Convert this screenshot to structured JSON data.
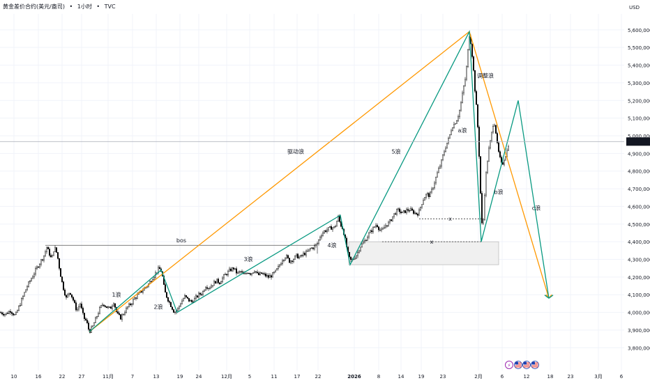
{
  "header": {
    "symbol_name": "黄金差价合约(美元/盎司)",
    "interval": "1小时",
    "source": "TVC",
    "separator": "•"
  },
  "chart_data": {
    "type": "candlestick",
    "price_unit": "USD",
    "ylim": [
      3750000,
      5690000
    ],
    "y_ticks": [
      "5,600,000",
      "5,500,000",
      "5,400,000",
      "5,300,000",
      "5,200,000",
      "5,100,000",
      "5,000,000",
      "4,900,000",
      "4,800,000",
      "4,700,000",
      "4,600,000",
      "4,500,000",
      "4,400,000",
      "4,300,000",
      "4,200,000",
      "4,100,000",
      "4,000,000",
      "3,900,000",
      "3,800,000"
    ],
    "x_ticks": [
      "10",
      "16",
      "22",
      "27",
      "11月",
      "7",
      "13",
      "19",
      "24",
      "12月",
      "5",
      "11",
      "17",
      "22",
      "2026",
      "8",
      "14",
      "19",
      "23",
      "2月",
      "6",
      "12",
      "18",
      "23",
      "3月",
      "6"
    ],
    "last_price_label": "4,967.270",
    "last_price": 4967270,
    "price_path": [
      [
        0,
        4000000
      ],
      [
        8,
        3990000
      ],
      [
        15,
        4010000
      ],
      [
        22,
        3980000
      ],
      [
        30,
        4060000
      ],
      [
        38,
        4140000
      ],
      [
        46,
        4200000
      ],
      [
        54,
        4260000
      ],
      [
        60,
        4300000
      ],
      [
        64,
        4330000
      ],
      [
        67,
        4370000
      ],
      [
        70,
        4340000
      ],
      [
        74,
        4300000
      ],
      [
        78,
        4370000
      ],
      [
        82,
        4330000
      ],
      [
        86,
        4230000
      ],
      [
        90,
        4150000
      ],
      [
        95,
        4080000
      ],
      [
        100,
        4120000
      ],
      [
        105,
        4070000
      ],
      [
        110,
        4010000
      ],
      [
        115,
        4050000
      ],
      [
        120,
        3970000
      ],
      [
        124,
        3950000
      ],
      [
        128,
        3890000
      ],
      [
        133,
        3920000
      ],
      [
        138,
        3970000
      ],
      [
        143,
        4020000
      ],
      [
        148,
        4050000
      ],
      [
        153,
        4030000
      ],
      [
        158,
        4020000
      ],
      [
        163,
        4060000
      ],
      [
        168,
        3990000
      ],
      [
        173,
        3970000
      ],
      [
        178,
        4000000
      ],
      [
        183,
        4030000
      ],
      [
        188,
        4050000
      ],
      [
        193,
        4080000
      ],
      [
        198,
        4100000
      ],
      [
        203,
        4120000
      ],
      [
        208,
        4140000
      ],
      [
        213,
        4160000
      ],
      [
        218,
        4190000
      ],
      [
        223,
        4220000
      ],
      [
        228,
        4250000
      ],
      [
        232,
        4230000
      ],
      [
        236,
        4120000
      ],
      [
        240,
        4080000
      ],
      [
        245,
        4040000
      ],
      [
        250,
        4000000
      ],
      [
        255,
        4020000
      ],
      [
        260,
        4060000
      ],
      [
        265,
        4090000
      ],
      [
        270,
        4070000
      ],
      [
        275,
        4060000
      ],
      [
        280,
        4080000
      ],
      [
        285,
        4100000
      ],
      [
        290,
        4110000
      ],
      [
        295,
        4150000
      ],
      [
        300,
        4140000
      ],
      [
        305,
        4160000
      ],
      [
        310,
        4180000
      ],
      [
        315,
        4170000
      ],
      [
        320,
        4200000
      ],
      [
        325,
        4220000
      ],
      [
        330,
        4240000
      ],
      [
        335,
        4250000
      ],
      [
        340,
        4220000
      ],
      [
        345,
        4230000
      ],
      [
        350,
        4210000
      ],
      [
        355,
        4230000
      ],
      [
        360,
        4220000
      ],
      [
        365,
        4240000
      ],
      [
        370,
        4210000
      ],
      [
        375,
        4220000
      ],
      [
        380,
        4210000
      ],
      [
        385,
        4200000
      ],
      [
        390,
        4210000
      ],
      [
        395,
        4230000
      ],
      [
        400,
        4260000
      ],
      [
        405,
        4300000
      ],
      [
        410,
        4320000
      ],
      [
        415,
        4290000
      ],
      [
        420,
        4300000
      ],
      [
        425,
        4320000
      ],
      [
        430,
        4310000
      ],
      [
        435,
        4330000
      ],
      [
        440,
        4340000
      ],
      [
        445,
        4360000
      ],
      [
        450,
        4370000
      ],
      [
        455,
        4390000
      ],
      [
        460,
        4440000
      ],
      [
        465,
        4460000
      ],
      [
        470,
        4470000
      ],
      [
        475,
        4480000
      ],
      [
        480,
        4480000
      ],
      [
        485,
        4540000
      ],
      [
        488,
        4500000
      ],
      [
        492,
        4470000
      ],
      [
        496,
        4390000
      ],
      [
        500,
        4310000
      ],
      [
        504,
        4290000
      ],
      [
        508,
        4310000
      ],
      [
        512,
        4330000
      ],
      [
        516,
        4370000
      ],
      [
        520,
        4390000
      ],
      [
        524,
        4410000
      ],
      [
        528,
        4440000
      ],
      [
        532,
        4460000
      ],
      [
        536,
        4480000
      ],
      [
        540,
        4500000
      ],
      [
        544,
        4470000
      ],
      [
        548,
        4460000
      ],
      [
        552,
        4490000
      ],
      [
        556,
        4500000
      ],
      [
        560,
        4520000
      ],
      [
        564,
        4550000
      ],
      [
        568,
        4570000
      ],
      [
        572,
        4580000
      ],
      [
        576,
        4560000
      ],
      [
        580,
        4570000
      ],
      [
        584,
        4580000
      ],
      [
        588,
        4580000
      ],
      [
        592,
        4570000
      ],
      [
        596,
        4560000
      ],
      [
        600,
        4560000
      ],
      [
        604,
        4610000
      ],
      [
        608,
        4650000
      ],
      [
        612,
        4670000
      ],
      [
        616,
        4660000
      ],
      [
        620,
        4700000
      ],
      [
        624,
        4750000
      ],
      [
        628,
        4800000
      ],
      [
        632,
        4840000
      ],
      [
        636,
        4900000
      ],
      [
        640,
        4950000
      ],
      [
        644,
        4990000
      ],
      [
        648,
        5050000
      ],
      [
        652,
        5070000
      ],
      [
        656,
        5100000
      ],
      [
        660,
        5160000
      ],
      [
        664,
        5260000
      ],
      [
        668,
        5340000
      ],
      [
        671,
        5480000
      ],
      [
        673,
        5570000
      ],
      [
        675,
        5530000
      ],
      [
        678,
        5420000
      ],
      [
        681,
        5260000
      ],
      [
        684,
        5120000
      ],
      [
        686,
        4980000
      ],
      [
        688,
        4800000
      ],
      [
        690,
        4550000
      ],
      [
        692,
        4450000
      ],
      [
        694,
        4600000
      ],
      [
        696,
        4750000
      ],
      [
        698,
        4820000
      ],
      [
        700,
        4900000
      ],
      [
        702,
        4950000
      ],
      [
        704,
        4980000
      ],
      [
        706,
        5050000
      ],
      [
        708,
        5080000
      ],
      [
        710,
        5060000
      ],
      [
        712,
        4980000
      ],
      [
        714,
        4920000
      ],
      [
        716,
        4890000
      ],
      [
        718,
        4850000
      ],
      [
        720,
        4830000
      ],
      [
        722,
        4860000
      ],
      [
        724,
        4880000
      ],
      [
        726,
        4900000
      ],
      [
        728,
        4930000
      ],
      [
        730,
        4967270
      ]
    ],
    "lines": [
      {
        "color": "#ff9800",
        "points": [
          [
            128,
            3890000
          ],
          [
            673,
            5590000
          ],
          [
            787,
            4080000
          ]
        ]
      },
      {
        "color": "#ff9800",
        "points": [
          [
            787,
            4080000
          ],
          [
            783,
            4100000
          ]
        ]
      },
      {
        "color": "#ff9800",
        "points": [
          [
            787,
            4080000
          ],
          [
            791,
            4100000
          ]
        ]
      },
      {
        "color": "#089981",
        "points": [
          [
            128,
            3890000
          ],
          [
            231,
            4240000
          ],
          [
            254,
            4000000
          ],
          [
            488,
            4550000
          ],
          [
            502,
            4270000
          ],
          [
            673,
            5590000
          ],
          [
            690,
            4400000
          ],
          [
            743,
            5200000
          ],
          [
            787,
            4080000
          ]
        ]
      },
      {
        "color": "#089981",
        "points": [
          [
            787,
            4080000
          ],
          [
            781,
            4098000
          ]
        ]
      },
      {
        "color": "#089981",
        "points": [
          [
            787,
            4080000
          ],
          [
            793,
            4098000
          ]
        ]
      }
    ],
    "bos_line": {
      "from_x": 65,
      "to_x": 455,
      "price": 4380000
    },
    "bos_label": "bos",
    "box": {
      "x0": 500,
      "x1": 715,
      "p_top": 4400000,
      "p_bottom": 4270000,
      "fill": "#f0f0f0",
      "stroke": "#bdbdbd"
    },
    "dashed_lines": [
      {
        "x0": 601,
        "x1": 690,
        "price": 4530000,
        "label": "x"
      },
      {
        "x0": 548,
        "x1": 690,
        "price": 4400000,
        "label": "x"
      }
    ],
    "annotations": [
      {
        "text": "1浪",
        "x": 167,
        "price": 4090000
      },
      {
        "text": "2浪",
        "x": 227,
        "price": 4020000
      },
      {
        "text": "3浪",
        "x": 356,
        "price": 4290000
      },
      {
        "text": "4浪",
        "x": 476,
        "price": 4370000
      },
      {
        "text": "5浪",
        "x": 568,
        "price": 4900000
      },
      {
        "text": "驱动浪",
        "x": 424,
        "price": 4900000
      },
      {
        "text": "调整浪",
        "x": 696,
        "price": 5330000
      },
      {
        "text": "a浪",
        "x": 663,
        "price": 5020000
      },
      {
        "text": "b浪",
        "x": 715,
        "price": 4670000
      },
      {
        "text": "c浪",
        "x": 769,
        "price": 4580000
      }
    ],
    "event_icons": [
      "flash-event-icon",
      "us-flag-icon",
      "us-flag-icon",
      "us-flag-icon"
    ]
  },
  "colors": {
    "candle": "#000000",
    "grid": "#f0f3fa",
    "last_price_bg": "#131722",
    "last_price_line": "#b2b5be"
  }
}
